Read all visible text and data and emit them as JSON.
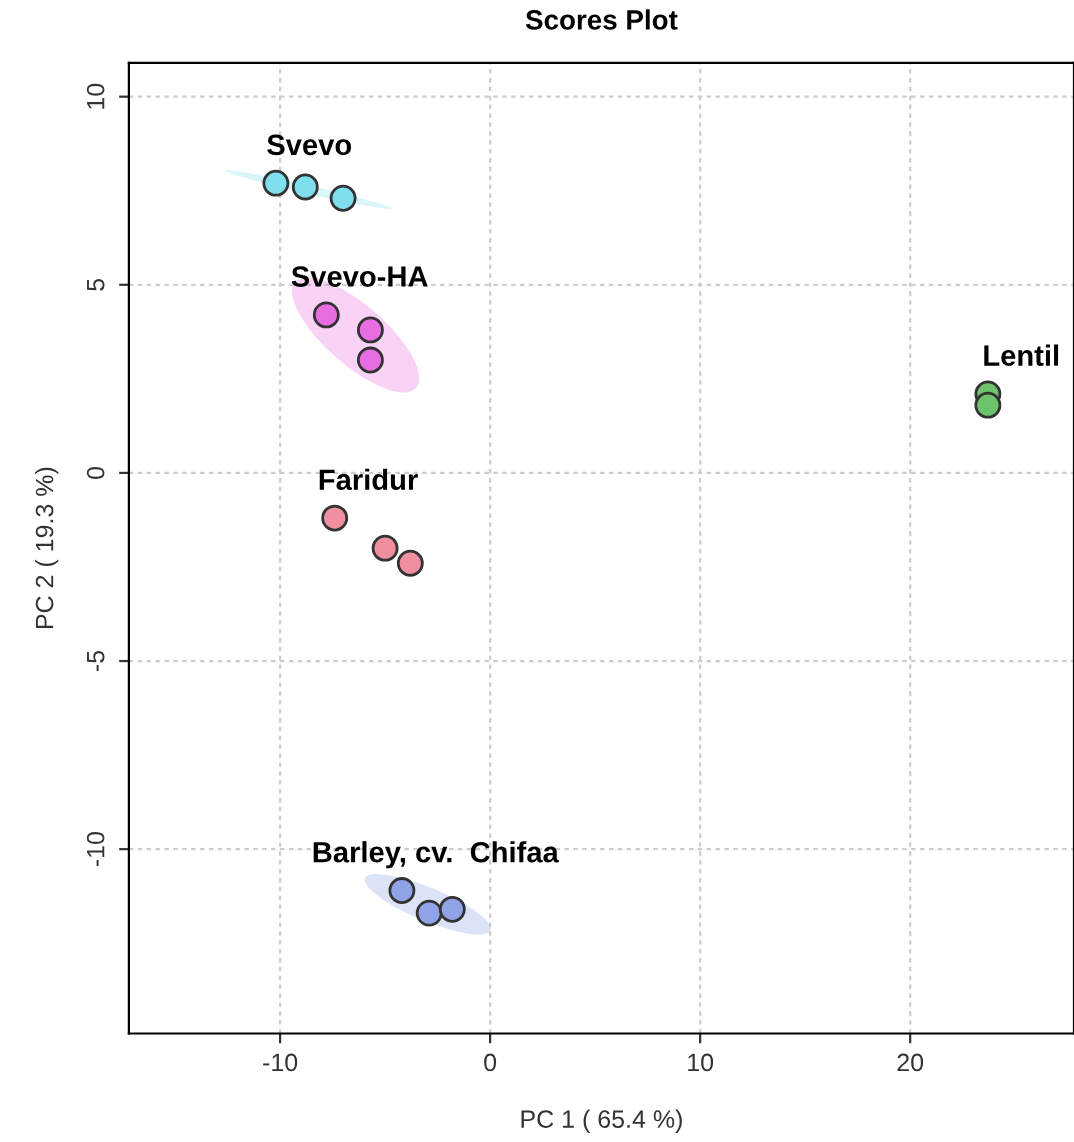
{
  "chart_data": {
    "type": "scatter",
    "title": "Scores Plot",
    "xlabel": "PC 1 ( 65.4 %)",
    "ylabel": "PC 2 ( 19.3 %)",
    "xlim": [
      -17.2,
      27.8
    ],
    "ylim": [
      -14.9,
      10.9
    ],
    "xticks": [
      -10,
      0,
      10,
      20
    ],
    "yticks": [
      -10,
      -5,
      0,
      5,
      10
    ],
    "grid": true,
    "marker": "circle",
    "legend": false,
    "series": [
      {
        "name": "Svevo",
        "color": "#7fdfef",
        "x": [
          -10.2,
          -8.8,
          -7.0
        ],
        "values": [
          7.7,
          7.6,
          7.3
        ]
      },
      {
        "name": "Svevo-HA",
        "color": "#e86de0",
        "x": [
          -7.8,
          -5.7,
          -5.7
        ],
        "values": [
          4.2,
          3.8,
          3.0
        ]
      },
      {
        "name": "Lentil",
        "color": "#6cc36c",
        "x": [
          23.7,
          23.7
        ],
        "values": [
          2.1,
          1.8
        ]
      },
      {
        "name": "Faridur",
        "color": "#ef8fa0",
        "x": [
          -7.4,
          -5.0,
          -3.8
        ],
        "values": [
          -1.2,
          -2.0,
          -2.4
        ]
      },
      {
        "name": "Barley, cv.  Chifaa",
        "color": "#8fa3e6",
        "x": [
          -4.2,
          -2.9,
          -1.8
        ],
        "values": [
          -11.1,
          -11.7,
          -11.6
        ]
      }
    ]
  }
}
